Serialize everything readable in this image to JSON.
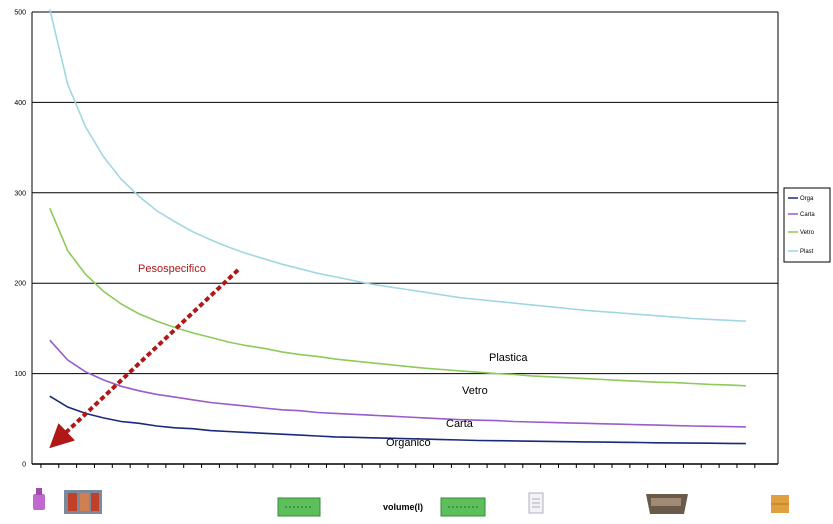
{
  "chart_data": {
    "type": "line",
    "xlabel": "volume(l)",
    "ylim": [
      0,
      500
    ],
    "y_ticks": [
      "0",
      "100",
      "200",
      "300",
      "400",
      "500"
    ],
    "grid": true,
    "legend_position": "right",
    "x": [
      1,
      2,
      3,
      4,
      5,
      6,
      7,
      8,
      9,
      10,
      11,
      12,
      13,
      14,
      15,
      16,
      17,
      18,
      19,
      20,
      21,
      22,
      23,
      24,
      25,
      26,
      27,
      28,
      29,
      30,
      31,
      32,
      33,
      34,
      35,
      36,
      37,
      38,
      39,
      40
    ],
    "series": [
      {
        "name": "Organico",
        "color": "#1a2a7a",
        "values": [
          75,
          63,
          56,
          51,
          47,
          45,
          42,
          40,
          39,
          37,
          36,
          35,
          34,
          33,
          32,
          31,
          30,
          29.5,
          29,
          28.5,
          28,
          27.5,
          27,
          26.5,
          26,
          25.8,
          25.5,
          25.2,
          25,
          24.7,
          24.5,
          24.2,
          24,
          23.8,
          23.5,
          23.3,
          23.1,
          23,
          22.8,
          22.6
        ]
      },
      {
        "name": "Carta",
        "color": "#9a5cc8",
        "values": [
          137,
          115,
          102,
          93,
          86,
          81,
          77,
          74,
          71,
          68,
          66,
          64,
          62,
          60,
          59,
          57,
          56,
          55,
          54,
          53,
          52,
          51,
          50,
          49,
          48.5,
          48,
          47,
          46.5,
          46,
          45.5,
          45,
          44.5,
          44,
          43.5,
          43,
          42.5,
          42,
          41.7,
          41.4,
          41
        ]
      },
      {
        "name": "Vetro",
        "color": "#8ccb5a",
        "values": [
          283,
          236,
          210,
          191,
          177,
          166,
          158,
          151,
          145,
          140,
          135,
          131,
          128,
          124,
          121,
          119,
          116,
          114,
          112,
          110,
          108,
          106,
          104.5,
          103,
          101.5,
          100,
          99,
          97.5,
          96.5,
          95.5,
          94.5,
          93.5,
          92.5,
          91.5,
          90.5,
          90,
          89,
          88,
          87.5,
          86.5
        ]
      },
      {
        "name": "Plastica",
        "color": "#9fd7e3",
        "values": [
          503,
          420,
          373,
          340,
          315,
          296,
          280,
          268,
          257,
          248,
          240,
          233,
          227,
          221,
          216,
          211,
          207,
          203,
          199,
          196,
          193,
          190,
          187,
          184,
          182,
          180,
          178,
          176,
          174,
          172,
          170,
          168.5,
          167,
          165.5,
          164,
          162.5,
          161,
          160,
          159,
          158
        ]
      }
    ],
    "legend": [
      "Orga",
      "Carta",
      "Vetro",
      "Plast"
    ],
    "curve_labels": [
      "Organico",
      "Carta",
      "Vetro",
      "Plastica"
    ],
    "annotation": "Pesospecifico"
  },
  "colors": {
    "arrow": "#b01818",
    "annotation_text": "#b01818"
  },
  "icons": [
    "bottle-icon",
    "paper-bundle-icon",
    "green-container-icon",
    "green-container-icon",
    "paper-sheet-icon",
    "skip-bin-icon",
    "box-icon"
  ]
}
